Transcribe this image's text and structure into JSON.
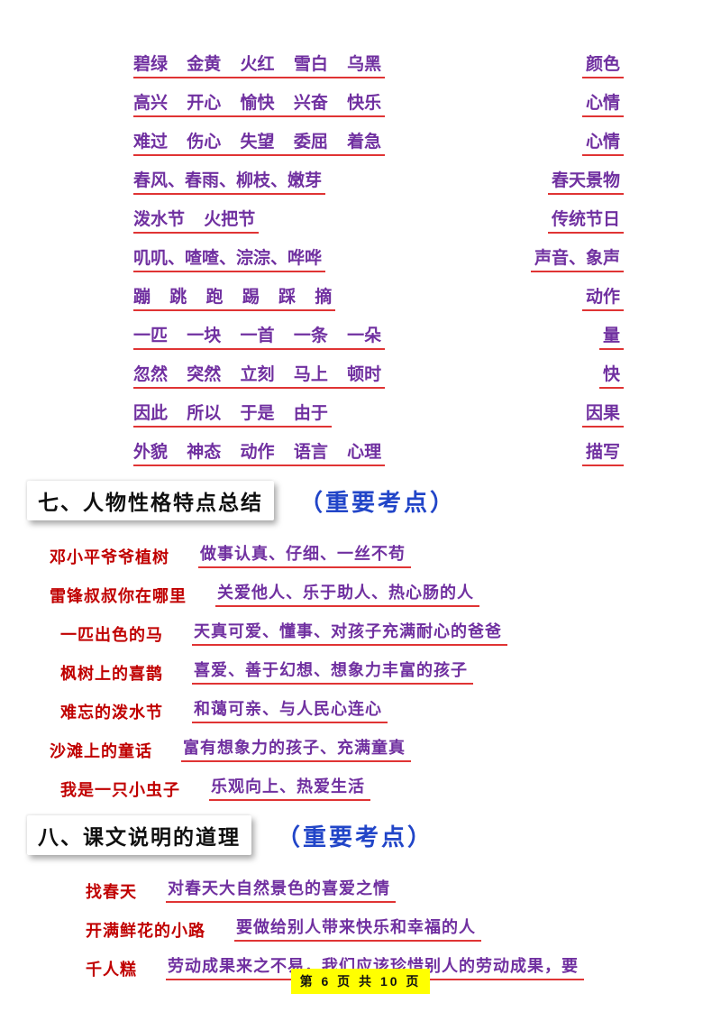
{
  "colors": {
    "purple_text": "#7030a0",
    "red_label": "#c00000",
    "underline_red": "#e03434",
    "badge_blue": "#2145c8",
    "footer_highlight": "#ffff00"
  },
  "top_section": {
    "rows": [
      {
        "items": "碧绿 金黄 火红 雪白 乌黑",
        "answer": "颜色"
      },
      {
        "items": "高兴 开心 愉快 兴奋 快乐",
        "answer": "心情"
      },
      {
        "items": "难过 伤心 失望 委屈 着急",
        "answer": "心情"
      },
      {
        "items": "春风、春雨、柳枝、嫩芽",
        "answer": "春天景物"
      },
      {
        "items": "泼水节 火把节",
        "answer": "传统节日"
      },
      {
        "items": "叽叽、喳喳、淙淙、哗哗",
        "answer": "声音、象声"
      },
      {
        "items": "蹦 跳 跑 踢 踩 摘",
        "answer": "动作"
      },
      {
        "items": "一匹 一块 一首 一条 一朵",
        "answer": "量"
      },
      {
        "items": "忽然 突然 立刻 马上 顿时",
        "answer": "快"
      },
      {
        "items": "因此 所以 于是 由于",
        "answer": "因果"
      },
      {
        "items": "外貌 神态 动作 语言 心理",
        "answer": "描写"
      }
    ]
  },
  "section7": {
    "title": "七、人物性格特点总结",
    "badge": "（重要考点）",
    "rows": [
      {
        "label": "邓小平爷爷植树",
        "answer": "做事认真、仔细、一丝不苟"
      },
      {
        "label": "雷锋叔叔你在哪里",
        "answer": "关爱他人、乐于助人、热心肠的人"
      },
      {
        "label": "一匹出色的马",
        "answer": "天真可爱、懂事、对孩子充满耐心的爸爸"
      },
      {
        "label": "枫树上的喜鹊",
        "answer": "喜爱、善于幻想、想象力丰富的孩子"
      },
      {
        "label": "难忘的泼水节",
        "answer": "和蔼可亲、与人民心连心"
      },
      {
        "label": "沙滩上的童话",
        "answer": "富有想象力的孩子、充满童真"
      },
      {
        "label": "我是一只小虫子",
        "answer": "乐观向上、热爱生活"
      }
    ]
  },
  "section8": {
    "title": "八、课文说明的道理",
    "badge": "（重要考点）",
    "rows": [
      {
        "label": "找春天",
        "answer": "对春天大自然景色的喜爱之情"
      },
      {
        "label": "开满鲜花的小路",
        "answer": "要做给别人带来快乐和幸福的人"
      },
      {
        "label": "千人糕",
        "answer": "劳动成果来之不易，我们应该珍惜别人的劳动成果，要"
      }
    ]
  },
  "footer": {
    "page_label": "第 6 页 共 10 页"
  }
}
